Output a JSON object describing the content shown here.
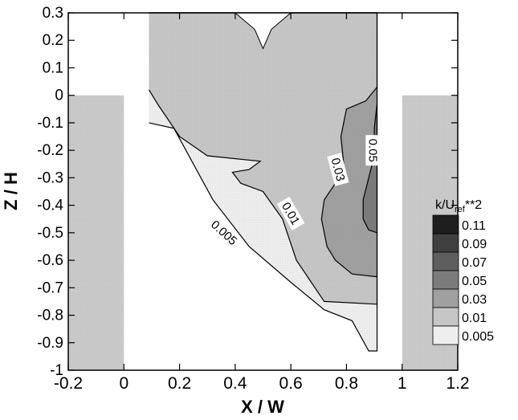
{
  "chart_data": {
    "type": "contour",
    "xlabel": "X / W",
    "ylabel": "Z / H",
    "xlim": [
      -0.2,
      1.2
    ],
    "ylim": [
      -1.0,
      0.3
    ],
    "xticks": [
      "-0.2",
      "0",
      "0.2",
      "0.4",
      "0.6",
      "0.8",
      "1",
      "1.2"
    ],
    "xtick_values": [
      -0.2,
      0,
      0.2,
      0.4,
      0.6,
      0.8,
      1.0,
      1.2
    ],
    "yticks": [
      "0.3",
      "0.2",
      "0.1",
      "0",
      "-0.1",
      "-0.2",
      "-0.3",
      "-0.4",
      "-0.5",
      "-0.6",
      "-0.7",
      "-0.8",
      "-0.9",
      "-1"
    ],
    "ytick_values": [
      0.3,
      0.2,
      0.1,
      0,
      -0.1,
      -0.2,
      -0.3,
      -0.4,
      -0.5,
      -0.6,
      -0.7,
      -0.8,
      -0.9,
      -1.0
    ],
    "legend": {
      "title_main": "k/U",
      "title_sub": "ref",
      "title_tail": "**2",
      "placement": "right",
      "levels": [
        {
          "label": "0.11",
          "color": "#1e1e1e"
        },
        {
          "label": "0.09",
          "color": "#404040"
        },
        {
          "label": "0.07",
          "color": "#5e5e5e"
        },
        {
          "label": "0.05",
          "color": "#7c7c7c"
        },
        {
          "label": "0.03",
          "color": "#a0a0a0"
        },
        {
          "label": "0.01",
          "color": "#c6c6c6"
        },
        {
          "label": "0.005",
          "color": "#eeeeee"
        }
      ]
    },
    "buildings": [
      {
        "x": [
          -0.2,
          0.0
        ],
        "z": [
          -1.0,
          0.0
        ],
        "fill": "#cacaca"
      },
      {
        "x": [
          1.0,
          1.2
        ],
        "z": [
          -1.0,
          0.0
        ],
        "fill": "#cacaca"
      }
    ],
    "regions": [
      {
        "level": "0.005",
        "color": "#eeeeee",
        "points": [
          [
            0.09,
            0.3
          ],
          [
            0.91,
            0.3
          ],
          [
            0.91,
            -0.93
          ],
          [
            0.88,
            -0.93
          ],
          [
            0.82,
            -0.82
          ],
          [
            0.72,
            -0.78
          ],
          [
            0.6,
            -0.68
          ],
          [
            0.45,
            -0.55
          ],
          [
            0.32,
            -0.38
          ],
          [
            0.18,
            -0.12
          ],
          [
            0.09,
            -0.1
          ]
        ]
      },
      {
        "level": "0.01",
        "color": "#c6c6c6",
        "points": [
          [
            0.09,
            0.3
          ],
          [
            0.91,
            0.3
          ],
          [
            0.91,
            -0.76
          ],
          [
            0.72,
            -0.75
          ],
          [
            0.62,
            -0.6
          ],
          [
            0.57,
            -0.45
          ],
          [
            0.5,
            -0.35
          ],
          [
            0.42,
            -0.32
          ],
          [
            0.39,
            -0.28
          ],
          [
            0.45,
            -0.27
          ],
          [
            0.49,
            -0.24
          ],
          [
            0.3,
            -0.22
          ],
          [
            0.2,
            -0.15
          ],
          [
            0.12,
            -0.03
          ],
          [
            0.09,
            0.02
          ]
        ]
      },
      {
        "level": "0.03",
        "color": "#a0a0a0",
        "points": [
          [
            0.91,
            0.03
          ],
          [
            0.87,
            -0.02
          ],
          [
            0.8,
            -0.05
          ],
          [
            0.78,
            -0.15
          ],
          [
            0.79,
            -0.25
          ],
          [
            0.76,
            -0.32
          ],
          [
            0.72,
            -0.38
          ],
          [
            0.71,
            -0.45
          ],
          [
            0.73,
            -0.55
          ],
          [
            0.76,
            -0.6
          ],
          [
            0.82,
            -0.65
          ],
          [
            0.91,
            -0.66
          ]
        ]
      },
      {
        "level": "0.05",
        "color": "#7c7c7c",
        "points": [
          [
            0.91,
            -0.03
          ],
          [
            0.9,
            -0.12
          ],
          [
            0.9,
            -0.22
          ],
          [
            0.88,
            -0.3
          ],
          [
            0.86,
            -0.38
          ],
          [
            0.86,
            -0.45
          ],
          [
            0.88,
            -0.49
          ],
          [
            0.91,
            -0.5
          ]
        ]
      }
    ],
    "top_notch": [
      [
        0.4,
        0.3
      ],
      [
        0.47,
        0.24
      ],
      [
        0.5,
        0.17
      ],
      [
        0.53,
        0.24
      ],
      [
        0.6,
        0.3
      ]
    ],
    "contour_labels": [
      {
        "text": "0.005",
        "x": 0.36,
        "z": -0.5,
        "angle": 42
      },
      {
        "text": "0.01",
        "x": 0.6,
        "z": -0.43,
        "angle": 60
      },
      {
        "text": "0.03",
        "x": 0.77,
        "z": -0.27,
        "angle": 75
      },
      {
        "text": "0.05",
        "x": 0.895,
        "z": -0.2,
        "angle": 90
      }
    ]
  }
}
